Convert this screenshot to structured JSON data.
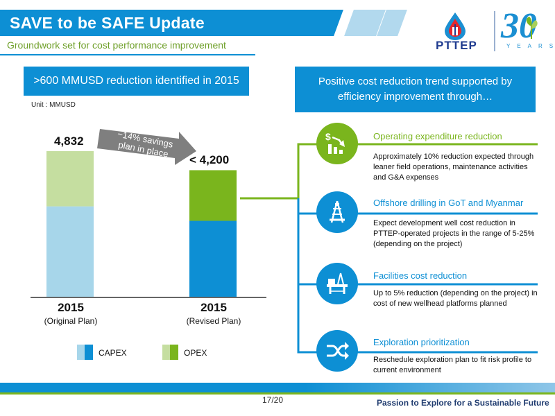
{
  "header": {
    "title": "SAVE to be SAFE Update",
    "subtitle": "Groundwork set for cost performance improvement"
  },
  "logo": {
    "name": "PTTEP",
    "anniversary": "30",
    "years": "YEARS"
  },
  "left": {
    "banner": ">600 MMUSD reduction identified in 2015",
    "unit": "Unit : MMUSD",
    "savings_label": "~14% savings plan in place",
    "legend": [
      {
        "label": "CAPEX",
        "color_light": "#a7d6ea",
        "color_dark": "#0d8fd4"
      },
      {
        "label": "OPEX",
        "color_light": "#c5dea0",
        "color_dark": "#7ab51d"
      }
    ]
  },
  "chart_data": {
    "type": "bar",
    "categories": [
      "2015 (Original Plan)",
      "2015 (Revised Plan)"
    ],
    "category_main": [
      "2015",
      "2015"
    ],
    "category_sub": [
      "(Original Plan)",
      "(Revised Plan)"
    ],
    "value_labels": [
      "4,832",
      "< 4,200"
    ],
    "totals": [
      4832,
      4200
    ],
    "series": [
      {
        "name": "CAPEX",
        "values": [
          3000,
          2520
        ]
      },
      {
        "name": "OPEX",
        "values": [
          1832,
          1680
        ]
      }
    ],
    "colors": {
      "original": {
        "CAPEX": "#a7d6ea",
        "OPEX": "#c5dea0"
      },
      "revised": {
        "CAPEX": "#0d8fd4",
        "OPEX": "#7ab51d"
      }
    },
    "ylim": [
      0,
      4832
    ]
  },
  "right": {
    "banner": "Positive cost reduction trend supported by efficiency improvement through…",
    "items": [
      {
        "title": "Operating expenditure reduction",
        "desc": "Approximately 10% reduction expected through leaner field operations, maintenance activities and G&A expenses",
        "icon": "cost-reduction-icon",
        "accent": "#7ab51d"
      },
      {
        "title": "Offshore drilling in GoT and Myanmar",
        "desc": "Expect development well cost reduction in PTTEP-operated projects in the range of 5-25% (depending on the project)",
        "icon": "drilling-rig-icon",
        "accent": "#0d8fd4"
      },
      {
        "title": "Facilities cost reduction",
        "desc": "Up to 5% reduction (depending on the project) in cost of new wellhead platforms planned",
        "icon": "offshore-platform-icon",
        "accent": "#0d8fd4"
      },
      {
        "title": "Exploration prioritization",
        "desc": "Reschedule exploration plan to fit risk profile to current environment",
        "icon": "shuffle-icon",
        "accent": "#0d8fd4"
      }
    ]
  },
  "footer": {
    "page": "17/20",
    "tagline": "Passion to Explore for a Sustainable Future"
  }
}
